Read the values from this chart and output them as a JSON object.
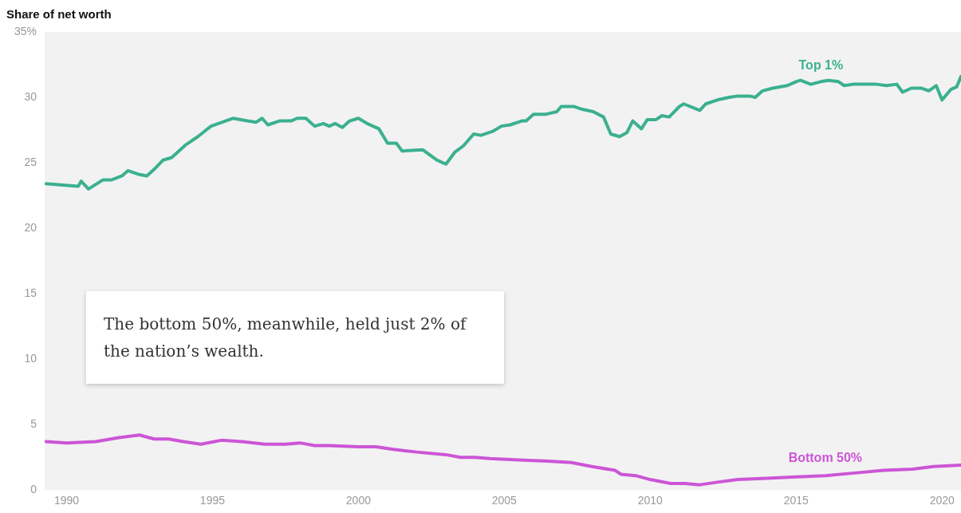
{
  "chart_data": {
    "type": "line",
    "title": "Share of net worth",
    "annotations": [
      "The bottom 50%, meanwhile, held just 2% of the nation’s wealth."
    ],
    "xlim": [
      1989.25,
      2020.65
    ],
    "xticks": [
      1990,
      1995,
      2000,
      2005,
      2010,
      2015,
      2020
    ],
    "ylim": [
      0,
      35
    ],
    "yticks": [
      0,
      5,
      10,
      15,
      20,
      25,
      30,
      {
        "value": 35,
        "label": "35%"
      }
    ],
    "grid": false,
    "legend": false,
    "marker": "none",
    "line_style": "solid",
    "series": [
      {
        "name": "Top 1%",
        "color": "#3bb08f",
        "x": [
          1989.3,
          1990.4,
          1990.5,
          1990.75,
          1991.25,
          1991.55,
          1991.9,
          1992.1,
          1992.5,
          1992.75,
          1993.0,
          1993.3,
          1993.6,
          1994.1,
          1994.5,
          1994.95,
          1995.2,
          1995.7,
          1996.2,
          1996.5,
          1996.7,
          1996.9,
          1997.3,
          1997.7,
          1997.9,
          1998.2,
          1998.5,
          1998.8,
          1999.0,
          1999.2,
          1999.45,
          1999.7,
          2000.0,
          2000.3,
          2000.7,
          2001.0,
          2001.3,
          2001.5,
          2002.2,
          2002.7,
          2002.9,
          2003.0,
          2003.3,
          2003.6,
          2003.95,
          2004.2,
          2004.6,
          2004.9,
          2005.2,
          2005.6,
          2005.75,
          2006.0,
          2006.4,
          2006.8,
          2006.95,
          2007.4,
          2007.65,
          2008.05,
          2008.4,
          2008.65,
          2008.95,
          2009.2,
          2009.4,
          2009.7,
          2009.9,
          2010.2,
          2010.4,
          2010.65,
          2011.0,
          2011.15,
          2011.7,
          2011.9,
          2012.3,
          2012.7,
          2013.0,
          2013.4,
          2013.6,
          2013.85,
          2014.2,
          2014.7,
          2015.0,
          2015.15,
          2015.5,
          2015.85,
          2016.1,
          2016.45,
          2016.65,
          2016.95,
          2017.35,
          2017.75,
          2018.1,
          2018.45,
          2018.65,
          2018.95,
          2019.3,
          2019.55,
          2019.8,
          2020.0,
          2020.3,
          2020.5,
          2020.65
        ],
        "values": [
          23.4,
          23.2,
          23.6,
          23.0,
          23.7,
          23.7,
          24.0,
          24.4,
          24.1,
          24.0,
          24.5,
          25.2,
          25.4,
          26.4,
          27.0,
          27.8,
          28.0,
          28.4,
          28.2,
          28.1,
          28.4,
          27.9,
          28.2,
          28.2,
          28.4,
          28.4,
          27.8,
          28.0,
          27.8,
          28.0,
          27.7,
          28.2,
          28.4,
          28.0,
          27.6,
          26.5,
          26.5,
          25.9,
          26.0,
          25.2,
          25.0,
          24.9,
          25.8,
          26.3,
          27.2,
          27.1,
          27.4,
          27.8,
          27.9,
          28.2,
          28.2,
          28.7,
          28.7,
          28.9,
          29.3,
          29.3,
          29.1,
          28.9,
          28.5,
          27.2,
          27.0,
          27.3,
          28.2,
          27.6,
          28.3,
          28.3,
          28.6,
          28.5,
          29.3,
          29.5,
          29.0,
          29.5,
          29.8,
          30.0,
          30.1,
          30.1,
          30.0,
          30.5,
          30.7,
          30.9,
          31.2,
          31.3,
          31.0,
          31.2,
          31.3,
          31.2,
          30.9,
          31.0,
          31.0,
          31.0,
          30.9,
          31.0,
          30.4,
          30.7,
          30.7,
          30.5,
          30.9,
          29.8,
          30.6,
          30.8,
          31.6
        ]
      },
      {
        "name": "Bottom 50%",
        "color": "#cc55d6",
        "x": [
          1989.3,
          1990.0,
          1991.0,
          1991.8,
          1992.5,
          1993.0,
          1993.5,
          1994.0,
          1994.6,
          1995.3,
          1996.0,
          1996.8,
          1997.5,
          1998.0,
          1998.5,
          1999.0,
          2000.0,
          2000.6,
          2001.2,
          2002.0,
          2003.0,
          2003.5,
          2004.0,
          2004.5,
          2005.5,
          2006.5,
          2007.3,
          2008.0,
          2008.8,
          2009.0,
          2009.5,
          2010.0,
          2010.7,
          2011.2,
          2011.7,
          2012.3,
          2013.0,
          2014.0,
          2015.0,
          2016.0,
          2017.0,
          2018.0,
          2019.0,
          2019.7,
          2020.65
        ],
        "values": [
          3.7,
          3.6,
          3.7,
          4.0,
          4.2,
          3.9,
          3.9,
          3.7,
          3.5,
          3.8,
          3.7,
          3.5,
          3.5,
          3.6,
          3.4,
          3.4,
          3.3,
          3.3,
          3.1,
          2.9,
          2.7,
          2.5,
          2.5,
          2.4,
          2.3,
          2.2,
          2.1,
          1.8,
          1.5,
          1.2,
          1.1,
          0.8,
          0.5,
          0.5,
          0.4,
          0.6,
          0.8,
          0.9,
          1.0,
          1.1,
          1.3,
          1.5,
          1.6,
          1.8,
          1.9
        ]
      }
    ]
  }
}
